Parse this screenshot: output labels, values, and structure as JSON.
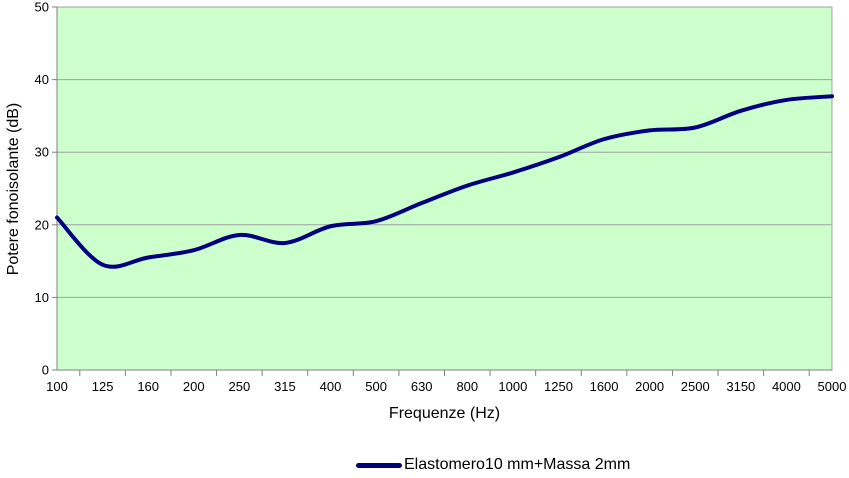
{
  "chart_data": {
    "type": "line",
    "title": "",
    "xlabel": "Frequenze (Hz)",
    "ylabel": "Potere fonoisolante (dB)",
    "categories": [
      "100",
      "125",
      "160",
      "200",
      "250",
      "315",
      "400",
      "500",
      "630",
      "800",
      "1000",
      "1250",
      "1600",
      "2000",
      "2500",
      "3150",
      "4000",
      "5000"
    ],
    "y_ticks": [
      0,
      10,
      20,
      30,
      40,
      50
    ],
    "ylim": [
      0,
      50
    ],
    "x_scale": "categorical",
    "grid": "horizontal",
    "legend_position": "bottom",
    "series": [
      {
        "name": "Elastomero10 mm+Massa 2mm",
        "color": "#000080",
        "smoothed": true,
        "line_width": 4,
        "values": [
          21,
          14.5,
          15.5,
          16.5,
          18.6,
          17.5,
          19.8,
          20.5,
          23,
          25.4,
          27.2,
          29.3,
          31.8,
          33,
          33.4,
          35.7,
          37.2,
          37.7
        ]
      }
    ],
    "colors": {
      "plot_bg": "#ccffcc",
      "gridline": "#a0a0a0",
      "axis": "#808080",
      "text": "#000000",
      "page_bg": "#ffffff"
    }
  }
}
